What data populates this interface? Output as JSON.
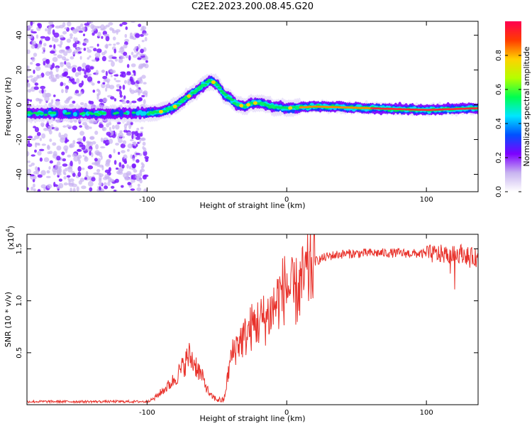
{
  "title": "C2E2.2023.200.08.45.G20",
  "chart_data": [
    {
      "type": "heatmap",
      "title": "C2E2.2023.200.08.45.G20",
      "xlabel": "Height of straight line (km)",
      "ylabel": "Frequency (Hz)",
      "xlim": [
        -186,
        137
      ],
      "ylim": [
        -50,
        48
      ],
      "xticks": [
        -100,
        0,
        100
      ],
      "yticks": [
        -40,
        -20,
        0,
        20,
        40
      ],
      "grid": false,
      "colorbar": {
        "label": "Normalized spectral amplitude",
        "range": [
          0,
          1
        ],
        "ticks": [
          0.0,
          0.2,
          0.4,
          0.6,
          0.8
        ],
        "colormap": [
          "#ffffff",
          "#c8b4f0",
          "#7d00ff",
          "#0050ff",
          "#00e6ff",
          "#00ff50",
          "#b4ff00",
          "#ffd200",
          "#ff3c00",
          "#ff0050"
        ]
      },
      "ridge_frequency_points": {
        "x": [
          -186,
          -150,
          -120,
          -100,
          -90,
          -80,
          -70,
          -60,
          -55,
          -50,
          -45,
          -40,
          -35,
          -30,
          -25,
          -20,
          -10,
          0,
          20,
          60,
          100,
          137
        ],
        "y": [
          -5,
          -5,
          -5,
          -5,
          -4,
          -1,
          5,
          11,
          14,
          12,
          6,
          3,
          0,
          -1,
          1,
          1,
          -1,
          -2,
          -1,
          -2,
          -3,
          -2
        ]
      },
      "noise_region_x": [
        -186,
        -100
      ]
    },
    {
      "type": "line",
      "xlabel": "Height of straight line (km)",
      "ylabel": "SNR (10 * v/v)",
      "y_multiplier": "(x10",
      "y_multiplier_exp": "4",
      "xlim": [
        -186,
        137
      ],
      "ylim": [
        0,
        16400
      ],
      "xticks": [
        -100,
        0,
        100
      ],
      "yticks": [
        0.5,
        1.0,
        1.5
      ],
      "grid": false,
      "series": [
        {
          "color": "#e8312a",
          "x": [
            -186,
            -150,
            -120,
            -100,
            -95,
            -90,
            -85,
            -80,
            -75,
            -70,
            -65,
            -60,
            -55,
            -50,
            -45,
            -40,
            -35,
            -30,
            -25,
            -20,
            -15,
            -10,
            -5,
            0,
            5,
            10,
            15,
            20,
            30,
            40,
            60,
            80,
            100,
            110,
            120,
            125,
            130,
            137
          ],
          "y": [
            300,
            300,
            300,
            300,
            600,
            1200,
            1800,
            2500,
            3500,
            4700,
            3800,
            2500,
            900,
            500,
            400,
            4500,
            6000,
            6500,
            7500,
            8000,
            8300,
            9200,
            10500,
            11500,
            10500,
            11500,
            12600,
            13800,
            14300,
            14500,
            14600,
            14600,
            14500,
            14500,
            14400,
            14600,
            14300,
            14100
          ]
        }
      ]
    }
  ]
}
